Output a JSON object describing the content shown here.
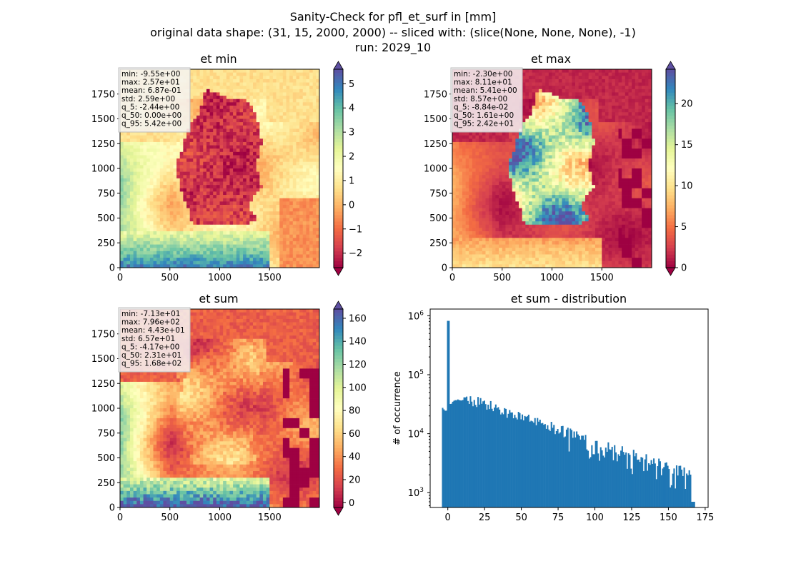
{
  "figure": {
    "title_lines": [
      "Sanity-Check for pfl_et_surf in [mm]",
      "original data shape: (31, 15, 2000, 2000) -- sliced with: (slice(None, None, None), -1)",
      "run: 2029_10"
    ]
  },
  "colors": {
    "hist_bar": "#1f77b4",
    "stats_box_fill": "#f5f5f5",
    "stats_box_border": "#bdbdbd",
    "spectral": [
      "#9e0142",
      "#d53e4f",
      "#f46d43",
      "#fdae61",
      "#fee08b",
      "#ffffbf",
      "#e6f598",
      "#abdda4",
      "#66c2a5",
      "#3288bd",
      "#5e4fa2"
    ]
  },
  "chart_data": [
    {
      "type": "heatmap",
      "title": "et min",
      "xticks": [
        "0",
        "500",
        "1000",
        "1500"
      ],
      "yticks": [
        "0",
        "250",
        "500",
        "750",
        "1000",
        "1250",
        "1500",
        "1750"
      ],
      "xlim": [
        0,
        2000
      ],
      "ylim": [
        0,
        2000
      ],
      "colorbar": {
        "range": [
          -2.6,
          5.6
        ],
        "ticks": [
          -2,
          -1,
          0,
          1,
          2,
          3,
          4,
          5
        ],
        "tick_labels": [
          "−2",
          "−1",
          "0",
          "1",
          "2",
          "3",
          "4",
          "5"
        ],
        "extend": "both"
      },
      "stats": [
        "min: -9.55e+00",
        "max: 2.57e+01",
        "mean: 6.87e-01",
        "std: 2.59e+00",
        "q_5: -2.44e+00",
        "q_50: 0.00e+00",
        "q_95: 5.42e+00"
      ]
    },
    {
      "type": "heatmap",
      "title": "et max",
      "xticks": [
        "0",
        "500",
        "1000",
        "1500"
      ],
      "yticks": [
        "0",
        "250",
        "500",
        "750",
        "1000",
        "1250",
        "1500",
        "1750"
      ],
      "xlim": [
        0,
        2000
      ],
      "ylim": [
        0,
        2000
      ],
      "colorbar": {
        "range": [
          0,
          24.2
        ],
        "ticks": [
          0,
          5,
          10,
          15,
          20
        ],
        "tick_labels": [
          "0",
          "5",
          "10",
          "15",
          "20"
        ],
        "extend": "both"
      },
      "stats": [
        "min: -2.30e+00",
        "max: 8.11e+01",
        "mean: 5.41e+00",
        "std: 8.57e+00",
        "q_5: -8.84e-02",
        "q_50: 1.61e+00",
        "q_95: 2.42e+01"
      ]
    },
    {
      "type": "heatmap",
      "title": "et sum",
      "xticks": [
        "0",
        "500",
        "1000",
        "1500"
      ],
      "yticks": [
        "0",
        "250",
        "500",
        "750",
        "1000",
        "1250",
        "1500",
        "1750"
      ],
      "xlim": [
        0,
        2000
      ],
      "ylim": [
        0,
        2000
      ],
      "colorbar": {
        "range": [
          -4.17,
          168
        ],
        "ticks": [
          0,
          20,
          40,
          60,
          80,
          100,
          120,
          140,
          160
        ],
        "tick_labels": [
          "0",
          "20",
          "40",
          "60",
          "80",
          "100",
          "120",
          "140",
          "160"
        ],
        "extend": "both"
      },
      "stats": [
        "min: -7.13e+01",
        "max: 7.96e+02",
        "mean: 4.43e+01",
        "std: 6.57e+01",
        "q_5: -4.17e+00",
        "q_50: 2.31e+01",
        "q_95: 1.68e+02"
      ]
    },
    {
      "type": "bar",
      "title": "et sum - distribution",
      "ylabel": "# of occurrence",
      "xlabel": "",
      "log_y": true,
      "xlim": [
        -12,
        177
      ],
      "ylim": [
        560,
        1300000
      ],
      "xticks": [
        0,
        25,
        50,
        75,
        100,
        125,
        150,
        175
      ],
      "yticks": [
        {
          "value": 1000,
          "base": "10",
          "exp": "3"
        },
        {
          "value": 10000,
          "base": "10",
          "exp": "4"
        },
        {
          "value": 100000,
          "base": "10",
          "exp": "5"
        },
        {
          "value": 1000000,
          "base": "10",
          "exp": "6"
        }
      ],
      "bin_range": [
        -4,
        168
      ],
      "spike": {
        "x": 0,
        "value": 820000
      }
    }
  ]
}
